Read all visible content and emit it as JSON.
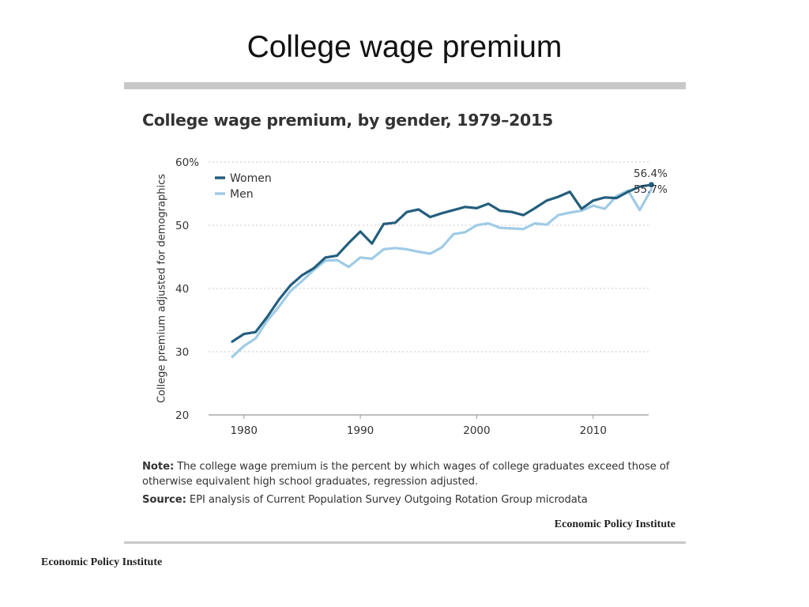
{
  "slide": {
    "title": "College wage premium"
  },
  "chart_data": {
    "type": "line",
    "title": "College wage premium, by gender, 1979–2015",
    "ylabel": "College premium adjusted for demographics",
    "xlabel": "",
    "xlim": [
      1979,
      2016.8
    ],
    "ylim": [
      20,
      60
    ],
    "grid": true,
    "legend": "top-left",
    "y_ticks": [
      {
        "v": 60,
        "label": "60%"
      },
      {
        "v": 50,
        "label": "50"
      },
      {
        "v": 40,
        "label": "40"
      },
      {
        "v": 30,
        "label": "30"
      },
      {
        "v": 20,
        "label": "20"
      }
    ],
    "x_ticks": [
      {
        "v": 1980,
        "label": "1980"
      },
      {
        "v": 1990,
        "label": "1990"
      },
      {
        "v": 2000,
        "label": "2000"
      },
      {
        "v": 2010,
        "label": "2010"
      }
    ],
    "x": [
      1979,
      1980,
      1981,
      1982,
      1983,
      1984,
      1985,
      1986,
      1987,
      1988,
      1989,
      1990,
      1991,
      1992,
      1993,
      1994,
      1995,
      1996,
      1997,
      1998,
      1999,
      2000,
      2001,
      2002,
      2003,
      2004,
      2005,
      2006,
      2007,
      2008,
      2009,
      2010,
      2011,
      2012,
      2013,
      2014,
      2015
    ],
    "series": [
      {
        "name": "Women",
        "color": "#245e7e",
        "values": [
          31.6,
          32.8,
          33.1,
          35.5,
          38.2,
          40.5,
          42.1,
          43.2,
          44.9,
          45.2,
          47.2,
          49.0,
          47.1,
          50.2,
          50.4,
          52.1,
          52.5,
          51.3,
          51.9,
          52.4,
          52.9,
          52.7,
          53.4,
          52.3,
          52.1,
          51.6,
          52.7,
          53.9,
          54.5,
          55.3,
          52.6,
          53.9,
          54.4,
          54.3,
          55.3,
          56.1,
          56.4
        ],
        "end_label": "56.4%"
      },
      {
        "name": "Men",
        "color": "#9fcbe6",
        "values": [
          29.2,
          30.9,
          32.1,
          34.9,
          37.1,
          39.6,
          41.2,
          42.9,
          44.4,
          44.5,
          43.4,
          44.9,
          44.7,
          46.2,
          46.4,
          46.2,
          45.8,
          45.5,
          46.5,
          48.6,
          48.9,
          50.0,
          50.3,
          49.6,
          49.5,
          49.4,
          50.3,
          50.1,
          51.6,
          52.0,
          52.3,
          53.1,
          52.6,
          54.6,
          55.5,
          52.4,
          55.7
        ],
        "end_label": "55.7%"
      }
    ]
  },
  "note": {
    "label": "Note:",
    "line1": " The college wage premium is the percent by which wages of college graduates exceed those of",
    "line2": "otherwise equivalent high school graduates, regression adjusted."
  },
  "source": {
    "label": "Source:",
    "text": " EPI analysis of Current Population Survey Outgoing Rotation Group microdata"
  },
  "branding": {
    "chart_credit": "Economic Policy Institute",
    "footer": "Economic Policy Institute"
  }
}
